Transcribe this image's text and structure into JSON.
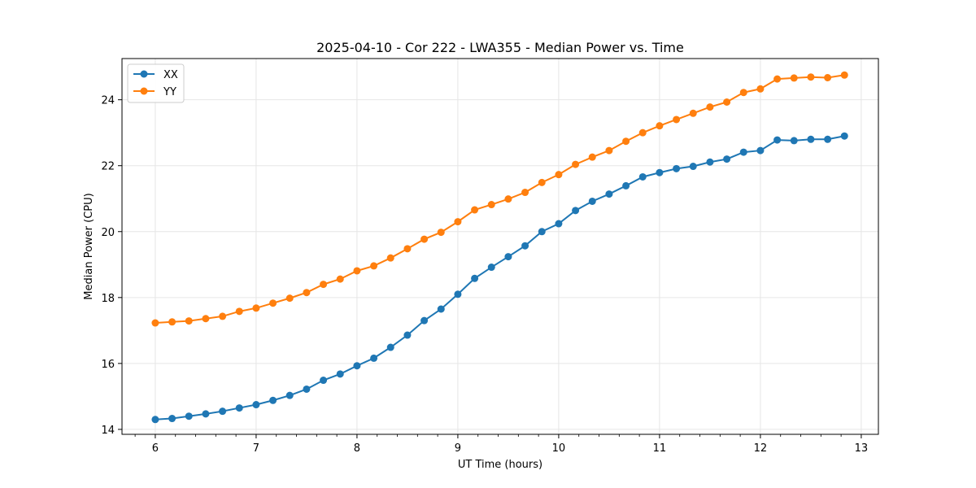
{
  "chart_data": {
    "type": "line",
    "title": "2025-04-10 - Cor 222 - LWA355 - Median Power vs. Time",
    "xlabel": "UT Time (hours)",
    "ylabel": "Median Power (CPU)",
    "xlim": [
      5.67,
      13.17
    ],
    "ylim": [
      13.85,
      25.25
    ],
    "xticks": [
      6,
      7,
      8,
      9,
      10,
      11,
      12,
      13
    ],
    "yticks": [
      14,
      16,
      18,
      20,
      22,
      24
    ],
    "grid": true,
    "legend_position": "top-left",
    "x": [
      6.0,
      6.1667,
      6.3333,
      6.5,
      6.6667,
      6.8333,
      7.0,
      7.1667,
      7.3333,
      7.5,
      7.6667,
      7.8333,
      8.0,
      8.1667,
      8.3333,
      8.5,
      8.6667,
      8.8333,
      9.0,
      9.1667,
      9.3333,
      9.5,
      9.6667,
      9.8333,
      10.0,
      10.1667,
      10.3333,
      10.5,
      10.6667,
      10.8333,
      11.0,
      11.1667,
      11.3333,
      11.5,
      11.6667,
      11.8333,
      12.0,
      12.1667,
      12.3333,
      12.5,
      12.6667,
      12.8333
    ],
    "series": [
      {
        "name": "XX",
        "color": "#1f77b4",
        "values": [
          14.3,
          14.33,
          14.4,
          14.47,
          14.55,
          14.65,
          14.75,
          14.88,
          15.03,
          15.22,
          15.49,
          15.68,
          15.93,
          16.16,
          16.49,
          16.86,
          17.3,
          17.65,
          18.1,
          18.58,
          18.92,
          19.24,
          19.57,
          20.0,
          20.24,
          20.64,
          20.92,
          21.14,
          21.39,
          21.66,
          21.79,
          21.91,
          21.98,
          22.11,
          22.2,
          22.41,
          22.46,
          22.78,
          22.76,
          22.8,
          22.8,
          22.9
        ]
      },
      {
        "name": "YY",
        "color": "#ff7f0e",
        "values": [
          17.23,
          17.26,
          17.29,
          17.36,
          17.43,
          17.58,
          17.68,
          17.83,
          17.98,
          18.15,
          18.4,
          18.56,
          18.81,
          18.96,
          19.2,
          19.48,
          19.77,
          19.98,
          20.3,
          20.66,
          20.82,
          20.99,
          21.19,
          21.49,
          21.73,
          22.04,
          22.26,
          22.46,
          22.74,
          23.0,
          23.21,
          23.4,
          23.59,
          23.78,
          23.93,
          24.22,
          24.33,
          24.63,
          24.66,
          24.69,
          24.67,
          24.75
        ]
      }
    ]
  }
}
